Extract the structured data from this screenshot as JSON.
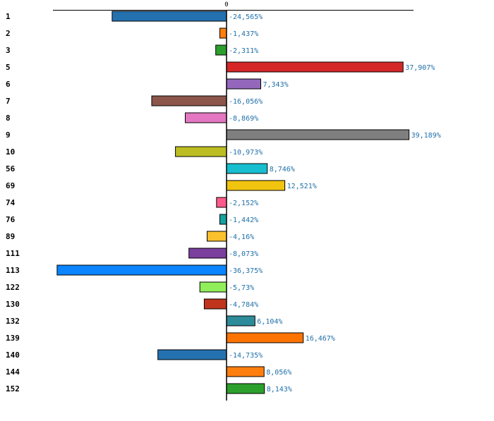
{
  "chart_data": {
    "type": "bar",
    "orientation": "horizontal",
    "title": "",
    "xlabel": "",
    "ylabel": "",
    "zero_tick_label": "0",
    "xlim": [
      -37.5,
      40.5
    ],
    "grid": false,
    "legend": "none",
    "categories": [
      "1",
      "2",
      "3",
      "5",
      "6",
      "7",
      "8",
      "9",
      "10",
      "56",
      "69",
      "74",
      "76",
      "89",
      "111",
      "113",
      "122",
      "130",
      "132",
      "139",
      "140",
      "144",
      "152"
    ],
    "values": [
      -24.565,
      -1.437,
      -2.311,
      37.907,
      7.343,
      -16.056,
      -8.869,
      39.189,
      -10.973,
      8.746,
      12.521,
      -2.152,
      -1.442,
      -4.16,
      -8.073,
      -36.375,
      -5.73,
      -4.784,
      6.104,
      16.467,
      -14.735,
      8.056,
      8.143
    ],
    "value_labels": [
      "-24,565%",
      "-1,437%",
      "-2,311%",
      "37,907%",
      "7,343%",
      "-16,056%",
      "-8,869%",
      "39,189%",
      "-10,973%",
      "8,746%",
      "12,521%",
      "-2,152%",
      "-1,442%",
      "-4,16%",
      "-8,073%",
      "-36,375%",
      "-5,73%",
      "-4,784%",
      "6,104%",
      "16,467%",
      "-14,735%",
      "8,056%",
      "8,143%"
    ],
    "colors": [
      "#2471b0",
      "#ff7f0e",
      "#2ca02c",
      "#d62728",
      "#9467bd",
      "#8c564b",
      "#e377c2",
      "#7f7f7f",
      "#bcbd22",
      "#17becf",
      "#f1c40f",
      "#ff5a8a",
      "#16a2a2",
      "#fbc02d",
      "#7b3f9e",
      "#0a84ff",
      "#90ee5a",
      "#c0341d",
      "#2e8b9a",
      "#ff7300",
      "#2471b0",
      "#ff7f0e",
      "#2ca02c"
    ]
  }
}
